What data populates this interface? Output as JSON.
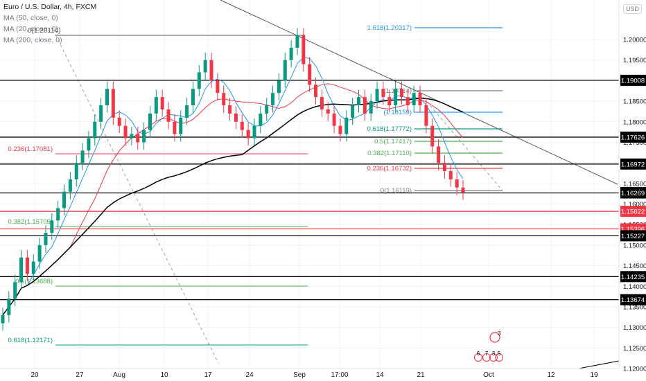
{
  "header": {
    "title": "Euro / U.S. Dollar, 4h, FXCM",
    "indicators": [
      "MA (50, close, 0)",
      "MA (20, close, 0)",
      "MA (200, close, 0)"
    ],
    "overlay_text": "0(1.20114)"
  },
  "axis_currency": "USD",
  "chart_data": {
    "type": "candlestick",
    "symbol": "EURUSD",
    "timeframe": "4h",
    "x_ticks": [
      "20",
      "27",
      "Aug",
      "10",
      "17",
      "24",
      "Sep",
      "17:00",
      "14",
      "21",
      "Oct",
      "12",
      "19"
    ],
    "y_ticks": [
      1.2,
      1.195,
      1.19,
      1.185,
      1.18,
      1.175,
      1.17,
      1.165,
      1.16,
      1.155,
      1.15,
      1.145,
      1.14,
      1.135,
      1.13,
      1.125,
      1.12
    ],
    "ylim": [
      1.1173,
      1.2118
    ],
    "price_labels": [
      {
        "value": 1.19008,
        "color": "#000000",
        "style": "line"
      },
      {
        "value": 1.17626,
        "color": "#000000",
        "style": "line"
      },
      {
        "value": 1.16972,
        "color": "#000000",
        "style": "line"
      },
      {
        "value": 1.16279,
        "color": "#131722",
        "style": "current"
      },
      {
        "value": 1.16269,
        "color": "#000000",
        "style": "line"
      },
      {
        "value": 1.15822,
        "color": "#f23645",
        "style": "line"
      },
      {
        "value": 1.15396,
        "color": "#f23645",
        "style": "line"
      },
      {
        "value": 1.15227,
        "color": "#000000",
        "style": "line"
      },
      {
        "value": 1.14235,
        "color": "#000000",
        "style": "line"
      },
      {
        "value": 1.13674,
        "color": "#000000",
        "style": "line"
      }
    ],
    "fib_left": [
      {
        "label": "0.236(1.17081)",
        "color": "#f23645"
      },
      {
        "label": "0.382(1.15705)",
        "color": "#4caf50"
      },
      {
        "label": "0.5(1.13688)",
        "color": "#4caf50"
      },
      {
        "label": "0.618(1.12171)",
        "color": "#089981"
      }
    ],
    "fib_right": [
      {
        "label": "1.618(1.20317)",
        "color": "#2196f3"
      },
      {
        "label": "(1.18714)",
        "color": "#787b86"
      },
      {
        "label": "(1.18159)",
        "color": "#2196f3"
      },
      {
        "label": "0.618(1.17772)",
        "color": "#089981"
      },
      {
        "label": "0.5(1.17417)",
        "color": "#4caf50"
      },
      {
        "label": "0.382(1.17110)",
        "color": "#4caf50"
      },
      {
        "label": "0.236(1.16732)",
        "color": "#f23645"
      },
      {
        "label": "0(1.16119)",
        "color": "#787b86"
      }
    ],
    "close_series": [
      1.133,
      1.137,
      1.141,
      1.147,
      1.143,
      1.146,
      1.15,
      1.153,
      1.156,
      1.159,
      1.163,
      1.166,
      1.17,
      1.173,
      1.176,
      1.18,
      1.184,
      1.188,
      1.181,
      1.179,
      1.176,
      1.177,
      1.175,
      1.178,
      1.182,
      1.186,
      1.183,
      1.18,
      1.177,
      1.181,
      1.184,
      1.188,
      1.192,
      1.195,
      1.19,
      1.187,
      1.184,
      1.182,
      1.18,
      1.178,
      1.176,
      1.179,
      1.182,
      1.184,
      1.187,
      1.19,
      1.195,
      1.198,
      1.201,
      1.194,
      1.189,
      1.186,
      1.183,
      1.182,
      1.179,
      1.177,
      1.181,
      1.184,
      1.186,
      1.182,
      1.185,
      1.188,
      1.186,
      1.184,
      1.188,
      1.186,
      1.184,
      1.187,
      1.184,
      1.179,
      1.174,
      1.17,
      1.168,
      1.166,
      1.164,
      1.1628
    ]
  },
  "watermark": [
    "6",
    "7",
    "3",
    "5",
    "3"
  ]
}
